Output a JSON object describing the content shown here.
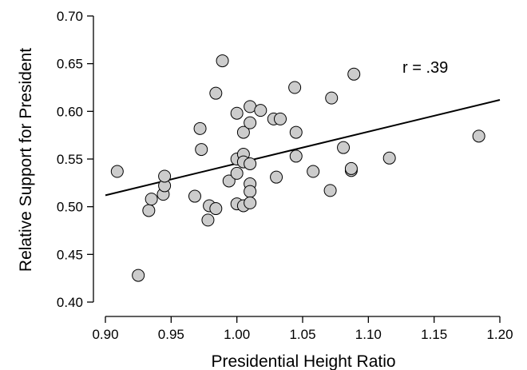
{
  "chart_data": {
    "type": "scatter",
    "title": "",
    "xlabel": "Presidential Height Ratio",
    "ylabel": "Relative Support for President",
    "xlim": [
      0.9,
      1.2
    ],
    "ylim": [
      0.4,
      0.7
    ],
    "xticks": [
      "0.90",
      "0.95",
      "1.00",
      "1.05",
      "1.10",
      "1.15",
      "1.20"
    ],
    "yticks": [
      "0.40",
      "0.45",
      "0.50",
      "0.55",
      "0.60",
      "0.65",
      "0.70"
    ],
    "grid": false,
    "annotation": "r = .39",
    "regression_line": {
      "x": [
        0.9,
        1.2
      ],
      "y": [
        0.512,
        0.612
      ]
    },
    "colors": {
      "point_fill": "#cccccc",
      "point_stroke": "#000000",
      "line": "#000000"
    },
    "points": [
      {
        "x": 0.909,
        "y": 0.537
      },
      {
        "x": 0.925,
        "y": 0.428
      },
      {
        "x": 0.933,
        "y": 0.496
      },
      {
        "x": 0.935,
        "y": 0.508
      },
      {
        "x": 0.944,
        "y": 0.513
      },
      {
        "x": 0.945,
        "y": 0.522
      },
      {
        "x": 0.945,
        "y": 0.532
      },
      {
        "x": 0.968,
        "y": 0.511
      },
      {
        "x": 0.972,
        "y": 0.582
      },
      {
        "x": 0.973,
        "y": 0.56
      },
      {
        "x": 0.978,
        "y": 0.486
      },
      {
        "x": 0.979,
        "y": 0.501
      },
      {
        "x": 0.984,
        "y": 0.498
      },
      {
        "x": 0.984,
        "y": 0.619
      },
      {
        "x": 0.989,
        "y": 0.653
      },
      {
        "x": 0.994,
        "y": 0.527
      },
      {
        "x": 1.0,
        "y": 0.598
      },
      {
        "x": 1.0,
        "y": 0.55
      },
      {
        "x": 1.0,
        "y": 0.535
      },
      {
        "x": 1.0,
        "y": 0.503
      },
      {
        "x": 1.005,
        "y": 0.578
      },
      {
        "x": 1.005,
        "y": 0.555
      },
      {
        "x": 1.005,
        "y": 0.547
      },
      {
        "x": 1.005,
        "y": 0.501
      },
      {
        "x": 1.01,
        "y": 0.605
      },
      {
        "x": 1.01,
        "y": 0.588
      },
      {
        "x": 1.01,
        "y": 0.545
      },
      {
        "x": 1.01,
        "y": 0.524
      },
      {
        "x": 1.01,
        "y": 0.516
      },
      {
        "x": 1.01,
        "y": 0.504
      },
      {
        "x": 1.018,
        "y": 0.601
      },
      {
        "x": 1.028,
        "y": 0.592
      },
      {
        "x": 1.03,
        "y": 0.531
      },
      {
        "x": 1.033,
        "y": 0.592
      },
      {
        "x": 1.044,
        "y": 0.625
      },
      {
        "x": 1.045,
        "y": 0.578
      },
      {
        "x": 1.045,
        "y": 0.553
      },
      {
        "x": 1.058,
        "y": 0.537
      },
      {
        "x": 1.071,
        "y": 0.517
      },
      {
        "x": 1.072,
        "y": 0.614
      },
      {
        "x": 1.081,
        "y": 0.562
      },
      {
        "x": 1.087,
        "y": 0.538
      },
      {
        "x": 1.087,
        "y": 0.54
      },
      {
        "x": 1.089,
        "y": 0.639
      },
      {
        "x": 1.116,
        "y": 0.551
      },
      {
        "x": 1.184,
        "y": 0.574
      }
    ]
  }
}
